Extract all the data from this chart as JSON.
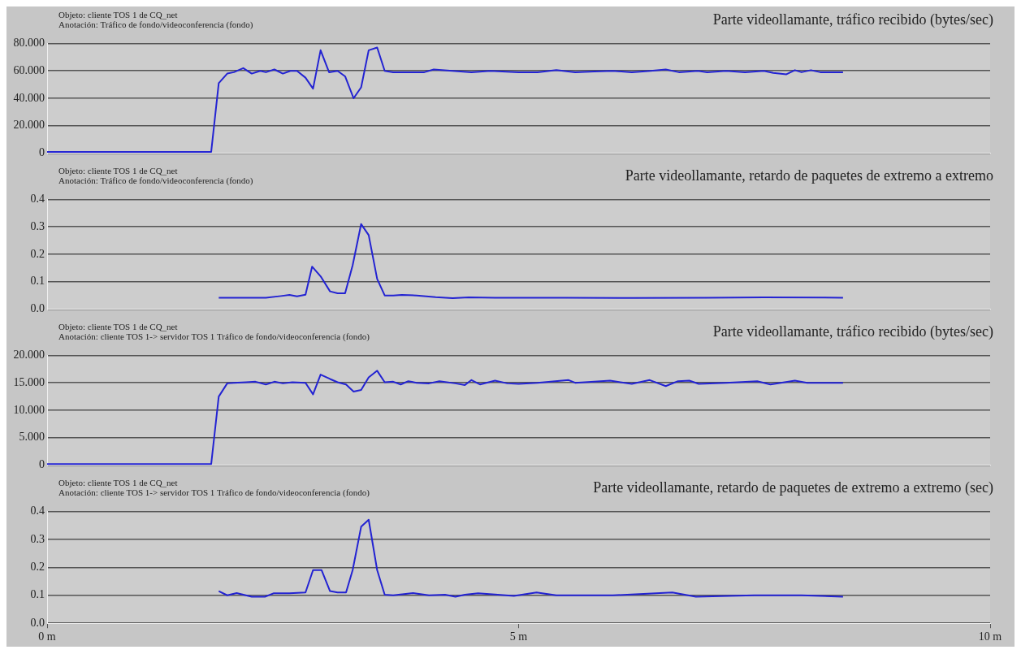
{
  "chart_data": [
    {
      "type": "line",
      "title": "Parte videollamante, tráfico recibido (bytes/sec)",
      "annotations": [
        "Objeto: cliente TOS 1 de CQ_net",
        "Anotación: Tráfico de fondo/videoconferencia (fondo)"
      ],
      "color": "#2323d2",
      "marker": "none",
      "grid": "y",
      "tick_labels": "y",
      "xlim": [
        0,
        10
      ],
      "ylim": [
        0,
        80
      ],
      "yticks": [
        0,
        {
          "value": 20,
          "label": "20.000"
        },
        {
          "value": 40,
          "label": "40.000"
        },
        {
          "value": 60,
          "label": "60.000"
        },
        {
          "value": 80,
          "label": "80.000"
        }
      ],
      "x": [
        0,
        1.74,
        1.82,
        1.91,
        1.98,
        2.08,
        2.17,
        2.26,
        2.32,
        2.41,
        2.5,
        2.58,
        2.65,
        2.74,
        2.82,
        2.9,
        2.99,
        3.08,
        3.16,
        3.25,
        3.33,
        3.41,
        3.5,
        3.58,
        3.67,
        3.8,
        4.0,
        4.1,
        4.3,
        4.5,
        4.7,
        5.0,
        5.2,
        5.4,
        5.6,
        5.8,
        6.0,
        6.2,
        6.4,
        6.56,
        6.7,
        6.9,
        7.0,
        7.2,
        7.4,
        7.6,
        7.7,
        7.84,
        7.93,
        8.0,
        8.1,
        8.2,
        8.44
      ],
      "values": [
        1,
        1,
        51,
        58,
        59,
        62,
        58,
        60,
        59,
        61,
        58,
        60,
        60,
        55,
        47,
        75,
        59,
        60,
        56,
        40,
        48,
        75,
        77,
        60,
        59,
        59,
        59,
        61,
        60,
        59,
        60,
        59,
        59,
        60.5,
        59,
        59.5,
        60,
        59,
        60,
        61,
        59,
        60,
        59,
        60,
        59,
        60,
        58.5,
        57.5,
        60.5,
        59,
        60.5,
        59,
        59
      ]
    },
    {
      "type": "line",
      "title": "Parte videollamante, retardo de paquetes de extremo a extremo",
      "annotations": [
        "Objeto: cliente TOS 1 de CQ_net",
        "Anotación: Tráfico de fondo/videoconferencia (fondo)"
      ],
      "color": "#2323d2",
      "marker": "none",
      "grid": "y",
      "tick_labels": "y",
      "xlim": [
        0,
        10
      ],
      "ylim": [
        0,
        0.4
      ],
      "yticks": [
        {
          "value": 0,
          "label": "0.0"
        },
        0.1,
        0.2,
        0.3,
        0.4
      ],
      "x": [
        1.82,
        2.0,
        2.32,
        2.48,
        2.57,
        2.65,
        2.74,
        2.81,
        2.9,
        3.0,
        3.08,
        3.16,
        3.24,
        3.33,
        3.41,
        3.5,
        3.58,
        3.67,
        3.76,
        3.92,
        4.12,
        4.3,
        4.47,
        4.75,
        5.5,
        6.2,
        7.0,
        7.6,
        8.44
      ],
      "values": [
        0.042,
        0.042,
        0.042,
        0.048,
        0.052,
        0.047,
        0.053,
        0.155,
        0.12,
        0.065,
        0.058,
        0.058,
        0.16,
        0.31,
        0.27,
        0.11,
        0.05,
        0.05,
        0.052,
        0.05,
        0.044,
        0.04,
        0.043,
        0.042,
        0.042,
        0.041,
        0.042,
        0.043,
        0.042
      ]
    },
    {
      "type": "line",
      "title": "Parte videollamante, tráfico recibido (bytes/sec)",
      "annotations": [
        "Objeto: cliente TOS 1 de CQ_net",
        "Anotación: cliente TOS 1-> servidor TOS 1 Tráfico de fondo/videoconferencia (fondo)"
      ],
      "color": "#2323d2",
      "marker": "none",
      "grid": "y",
      "tick_labels": "y",
      "xlim": [
        0,
        10
      ],
      "ylim": [
        0,
        20
      ],
      "yticks": [
        0,
        {
          "value": 5,
          "label": "5.000"
        },
        {
          "value": 10,
          "label": "10.000"
        },
        {
          "value": 15,
          "label": "15.000"
        },
        {
          "value": 20,
          "label": "20.000"
        }
      ],
      "x": [
        0,
        1.74,
        1.82,
        1.91,
        1.98,
        2.11,
        2.21,
        2.32,
        2.41,
        2.5,
        2.6,
        2.74,
        2.82,
        2.9,
        3.0,
        3.08,
        3.17,
        3.25,
        3.33,
        3.41,
        3.5,
        3.58,
        3.67,
        3.75,
        3.83,
        3.92,
        4.05,
        4.16,
        4.33,
        4.43,
        4.5,
        4.59,
        4.75,
        4.88,
        5.0,
        5.2,
        5.53,
        5.6,
        5.97,
        6.2,
        6.39,
        6.56,
        6.69,
        6.81,
        6.91,
        7.2,
        7.53,
        7.67,
        7.93,
        8.06,
        8.44
      ],
      "values": [
        0.2,
        0.2,
        12.5,
        14.9,
        15,
        15.1,
        15.2,
        14.7,
        15.2,
        14.9,
        15.1,
        15,
        12.9,
        16.5,
        15.7,
        15.1,
        14.7,
        13.4,
        13.7,
        16,
        17.2,
        15.1,
        15.2,
        14.7,
        15.3,
        15,
        14.9,
        15.3,
        14.9,
        14.6,
        15.5,
        14.7,
        15.4,
        14.9,
        14.8,
        15,
        15.5,
        15,
        15.4,
        14.8,
        15.5,
        14.4,
        15.3,
        15.4,
        14.8,
        15,
        15.3,
        14.7,
        15.4,
        15,
        15
      ]
    },
    {
      "type": "line",
      "title": "Parte videollamante, retardo de paquetes de extremo a extremo (sec)",
      "annotations": [
        "Objeto: cliente TOS 1 de CQ_net",
        "Anotación: cliente TOS 1-> servidor TOS 1 Tráfico de fondo/videoconferencia (fondo)"
      ],
      "color": "#2323d2",
      "marker": "none",
      "grid": "y",
      "xlim": [
        0,
        10
      ],
      "xticks": [
        {
          "value": 0,
          "label": "0 m"
        },
        {
          "value": 5,
          "label": "5 m"
        },
        {
          "value": 10,
          "label": "10 m"
        }
      ],
      "ylim": [
        0,
        0.4
      ],
      "yticks": [
        {
          "value": 0,
          "label": "0.0"
        },
        0.1,
        0.2,
        0.3,
        0.4
      ],
      "x": [
        1.82,
        1.91,
        2.01,
        2.17,
        2.31,
        2.4,
        2.57,
        2.74,
        2.82,
        2.91,
        3.0,
        3.08,
        3.17,
        3.24,
        3.33,
        3.41,
        3.5,
        3.58,
        3.67,
        3.88,
        4.05,
        4.22,
        4.33,
        4.43,
        4.57,
        4.75,
        4.95,
        5.19,
        5.4,
        6.0,
        6.63,
        6.88,
        7.5,
        8.0,
        8.44
      ],
      "values": [
        0.115,
        0.1,
        0.108,
        0.095,
        0.095,
        0.107,
        0.107,
        0.11,
        0.19,
        0.19,
        0.115,
        0.11,
        0.11,
        0.19,
        0.345,
        0.37,
        0.19,
        0.102,
        0.1,
        0.108,
        0.1,
        0.102,
        0.095,
        0.102,
        0.107,
        0.103,
        0.098,
        0.11,
        0.1,
        0.1,
        0.11,
        0.095,
        0.1,
        0.1,
        0.095
      ]
    }
  ]
}
